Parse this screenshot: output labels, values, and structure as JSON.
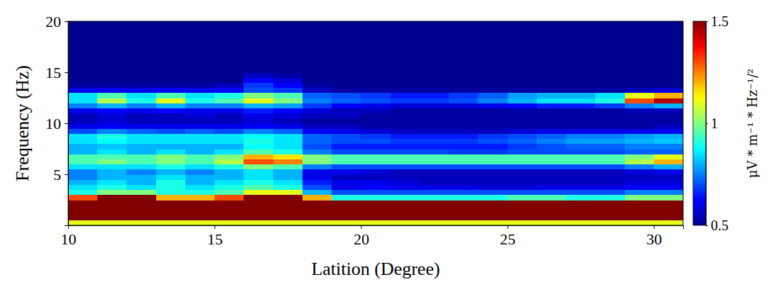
{
  "chart_data": {
    "type": "heatmap",
    "x_label": "Latition (Degree)",
    "y_label": "Frequency (Hz)",
    "xlim": [
      10,
      31
    ],
    "ylim": [
      0,
      20
    ],
    "xticks": [
      10,
      15,
      20,
      25,
      30
    ],
    "yticks": [
      5,
      10,
      15,
      20
    ],
    "x_bins": [
      10,
      11,
      12,
      13,
      14,
      15,
      16,
      17,
      18,
      19,
      20,
      21,
      22,
      23,
      24,
      25,
      26,
      27,
      28,
      29,
      30,
      31
    ],
    "y_bins": [
      0,
      0.5,
      1,
      1.5,
      2,
      2.5,
      3,
      3.5,
      4,
      4.5,
      5,
      5.5,
      6,
      6.5,
      7,
      7.5,
      8,
      8.5,
      9,
      9.5,
      10,
      10.5,
      11,
      11.5,
      12,
      12.5,
      13,
      13.5,
      14,
      14.5,
      15,
      20
    ],
    "z": [
      [
        1.1,
        1.1,
        1.1,
        1.1,
        1.1,
        1.1,
        1.1,
        1.1,
        1.1,
        1.1,
        1.1,
        1.1,
        1.1,
        1.1,
        1.1,
        1.1,
        1.1,
        1.1,
        1.1,
        1.1,
        1.1
      ],
      [
        1.8,
        1.8,
        1.8,
        1.8,
        1.8,
        1.8,
        1.8,
        1.8,
        1.8,
        1.8,
        1.8,
        1.8,
        1.8,
        1.8,
        1.8,
        1.8,
        1.8,
        1.8,
        1.8,
        1.8,
        1.8
      ],
      [
        1.8,
        1.8,
        1.8,
        1.8,
        1.8,
        1.8,
        1.8,
        1.8,
        1.8,
        1.8,
        1.8,
        1.8,
        1.8,
        1.8,
        1.8,
        1.8,
        1.8,
        1.8,
        1.8,
        1.8,
        1.8
      ],
      [
        1.7,
        1.7,
        1.7,
        1.7,
        1.7,
        1.7,
        1.7,
        1.7,
        1.7,
        1.7,
        1.7,
        1.7,
        1.7,
        1.7,
        1.7,
        1.7,
        1.7,
        1.7,
        1.7,
        1.7,
        1.7
      ],
      [
        1.6,
        1.7,
        1.7,
        1.6,
        1.6,
        1.6,
        1.8,
        1.8,
        1.6,
        1.5,
        1.5,
        1.5,
        1.5,
        1.5,
        1.5,
        1.55,
        1.55,
        1.5,
        1.5,
        1.6,
        1.6
      ],
      [
        1.3,
        1.5,
        1.5,
        1.2,
        1.2,
        1.3,
        1.6,
        1.6,
        1.2,
        0.9,
        0.9,
        0.9,
        0.9,
        0.9,
        0.9,
        0.95,
        0.95,
        0.9,
        0.9,
        1.0,
        1.0
      ],
      [
        0.9,
        1.0,
        1.0,
        0.9,
        0.9,
        0.95,
        1.1,
        1.1,
        0.8,
        0.7,
        0.7,
        0.7,
        0.7,
        0.7,
        0.7,
        0.7,
        0.7,
        0.7,
        0.7,
        0.75,
        0.75
      ],
      [
        0.85,
        0.9,
        0.85,
        0.9,
        0.85,
        0.9,
        0.95,
        0.9,
        0.7,
        0.6,
        0.62,
        0.6,
        0.6,
        0.6,
        0.58,
        0.58,
        0.6,
        0.6,
        0.6,
        0.62,
        0.62
      ],
      [
        0.8,
        0.85,
        0.8,
        0.9,
        0.8,
        0.85,
        0.9,
        0.85,
        0.65,
        0.6,
        0.6,
        0.58,
        0.55,
        0.55,
        0.55,
        0.55,
        0.55,
        0.55,
        0.55,
        0.58,
        0.58
      ],
      [
        0.75,
        0.8,
        0.8,
        0.85,
        0.8,
        0.8,
        0.85,
        0.8,
        0.6,
        0.55,
        0.55,
        0.55,
        0.55,
        0.55,
        0.55,
        0.55,
        0.55,
        0.55,
        0.55,
        0.55,
        0.55
      ],
      [
        0.75,
        0.8,
        0.75,
        0.8,
        0.75,
        0.8,
        0.85,
        0.8,
        0.6,
        0.6,
        0.58,
        0.55,
        0.55,
        0.55,
        0.55,
        0.55,
        0.55,
        0.55,
        0.55,
        0.58,
        0.6
      ],
      [
        0.85,
        0.85,
        0.85,
        0.9,
        0.85,
        0.9,
        1.0,
        0.95,
        0.75,
        0.7,
        0.7,
        0.7,
        0.7,
        0.7,
        0.7,
        0.7,
        0.7,
        0.7,
        0.7,
        0.75,
        0.8
      ],
      [
        0.95,
        1.0,
        0.95,
        1.0,
        0.95,
        1.05,
        1.3,
        1.25,
        1.0,
        0.95,
        0.95,
        0.95,
        0.95,
        0.95,
        0.95,
        0.95,
        0.95,
        0.95,
        0.95,
        1.05,
        1.2
      ],
      [
        0.95,
        0.95,
        0.95,
        1.0,
        0.95,
        1.0,
        1.2,
        1.15,
        1.0,
        0.95,
        0.95,
        0.95,
        0.95,
        0.95,
        0.95,
        0.95,
        0.95,
        0.95,
        0.95,
        1.0,
        1.1
      ],
      [
        0.8,
        0.85,
        0.8,
        0.85,
        0.8,
        0.85,
        0.95,
        0.9,
        0.75,
        0.7,
        0.7,
        0.7,
        0.7,
        0.68,
        0.68,
        0.7,
        0.7,
        0.7,
        0.7,
        0.72,
        0.72
      ],
      [
        0.8,
        0.82,
        0.8,
        0.8,
        0.8,
        0.8,
        0.88,
        0.85,
        0.7,
        0.65,
        0.65,
        0.65,
        0.65,
        0.65,
        0.65,
        0.68,
        0.7,
        0.72,
        0.72,
        0.75,
        0.75
      ],
      [
        0.85,
        0.88,
        0.85,
        0.85,
        0.85,
        0.85,
        0.9,
        0.85,
        0.72,
        0.7,
        0.7,
        0.68,
        0.68,
        0.68,
        0.7,
        0.72,
        0.75,
        0.78,
        0.78,
        0.8,
        0.82
      ],
      [
        0.85,
        0.9,
        0.85,
        0.85,
        0.85,
        0.85,
        0.88,
        0.85,
        0.72,
        0.7,
        0.68,
        0.65,
        0.65,
        0.65,
        0.68,
        0.7,
        0.72,
        0.75,
        0.75,
        0.78,
        0.8
      ],
      [
        0.7,
        0.75,
        0.72,
        0.7,
        0.72,
        0.7,
        0.75,
        0.72,
        0.62,
        0.6,
        0.58,
        0.55,
        0.55,
        0.55,
        0.55,
        0.58,
        0.6,
        0.6,
        0.6,
        0.6,
        0.62
      ],
      [
        0.6,
        0.62,
        0.6,
        0.6,
        0.6,
        0.6,
        0.62,
        0.6,
        0.55,
        0.55,
        0.52,
        0.52,
        0.52,
        0.52,
        0.52,
        0.52,
        0.52,
        0.52,
        0.52,
        0.52,
        0.55
      ],
      [
        0.55,
        0.58,
        0.55,
        0.55,
        0.55,
        0.55,
        0.58,
        0.55,
        0.52,
        0.52,
        0.52,
        0.52,
        0.52,
        0.52,
        0.52,
        0.52,
        0.52,
        0.52,
        0.52,
        0.52,
        0.52
      ],
      [
        0.55,
        0.58,
        0.55,
        0.55,
        0.58,
        0.55,
        0.6,
        0.58,
        0.55,
        0.55,
        0.52,
        0.52,
        0.52,
        0.52,
        0.52,
        0.52,
        0.52,
        0.52,
        0.52,
        0.52,
        0.52
      ],
      [
        0.6,
        0.62,
        0.6,
        0.62,
        0.6,
        0.6,
        0.65,
        0.62,
        0.58,
        0.55,
        0.55,
        0.52,
        0.52,
        0.52,
        0.52,
        0.52,
        0.52,
        0.52,
        0.52,
        0.55,
        0.55
      ],
      [
        0.75,
        0.8,
        0.75,
        0.8,
        0.75,
        0.75,
        0.8,
        0.78,
        0.68,
        0.62,
        0.6,
        0.58,
        0.58,
        0.58,
        0.6,
        0.62,
        0.65,
        0.65,
        0.68,
        0.75,
        0.8
      ],
      [
        0.85,
        1.05,
        0.9,
        1.1,
        0.9,
        0.95,
        1.1,
        1.0,
        0.75,
        0.72,
        0.7,
        0.68,
        0.68,
        0.7,
        0.75,
        0.8,
        0.85,
        0.85,
        0.9,
        1.3,
        1.45
      ],
      [
        0.85,
        0.95,
        0.85,
        0.95,
        0.85,
        0.9,
        1.0,
        0.95,
        0.72,
        0.7,
        0.68,
        0.65,
        0.65,
        0.68,
        0.72,
        0.78,
        0.8,
        0.8,
        0.85,
        1.1,
        1.2
      ],
      [
        0.6,
        0.62,
        0.6,
        0.62,
        0.6,
        0.62,
        0.7,
        0.68,
        0.55,
        0.52,
        0.52,
        0.52,
        0.52,
        0.52,
        0.52,
        0.52,
        0.52,
        0.52,
        0.52,
        0.55,
        0.58
      ],
      [
        0.52,
        0.52,
        0.52,
        0.52,
        0.52,
        0.55,
        0.68,
        0.62,
        0.52,
        0.5,
        0.5,
        0.5,
        0.5,
        0.5,
        0.5,
        0.5,
        0.5,
        0.5,
        0.5,
        0.5,
        0.5
      ],
      [
        0.5,
        0.5,
        0.5,
        0.5,
        0.5,
        0.5,
        0.62,
        0.58,
        0.5,
        0.5,
        0.5,
        0.5,
        0.5,
        0.5,
        0.5,
        0.5,
        0.5,
        0.5,
        0.5,
        0.5,
        0.5
      ],
      [
        0.5,
        0.5,
        0.5,
        0.5,
        0.5,
        0.5,
        0.55,
        0.52,
        0.5,
        0.5,
        0.5,
        0.5,
        0.5,
        0.5,
        0.5,
        0.5,
        0.5,
        0.5,
        0.5,
        0.5,
        0.5
      ],
      [
        0.5,
        0.5,
        0.5,
        0.5,
        0.5,
        0.5,
        0.5,
        0.5,
        0.5,
        0.5,
        0.5,
        0.5,
        0.5,
        0.5,
        0.5,
        0.5,
        0.5,
        0.5,
        0.5,
        0.5,
        0.5
      ]
    ],
    "colorbar": {
      "label": "μV * m⁻¹ * Hz⁻¹/²",
      "range": [
        0.5,
        1.5
      ],
      "ticks": [
        0.5,
        1,
        1.5
      ]
    }
  }
}
